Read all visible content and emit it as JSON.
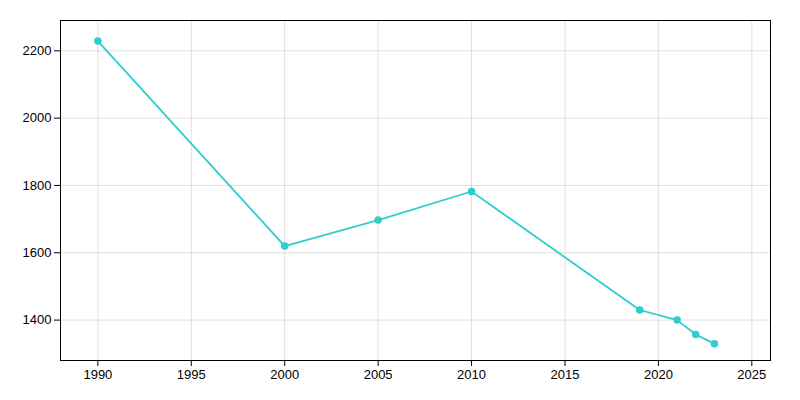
{
  "chart_data": {
    "type": "line",
    "x": [
      1990,
      2000,
      2005,
      2010,
      2019,
      2021,
      2022,
      2023
    ],
    "values": [
      2229,
      1620,
      1697,
      1782,
      1430,
      1400,
      1357,
      1330
    ],
    "color": "#2ecece",
    "marker": "circle",
    "xlim": [
      1988,
      2026
    ],
    "ylim": [
      1280,
      2290
    ],
    "xticks": [
      1990,
      1995,
      2000,
      2005,
      2010,
      2015,
      2020,
      2025
    ],
    "yticks": [
      1400,
      1600,
      1800,
      2000,
      2200
    ],
    "grid": true
  }
}
